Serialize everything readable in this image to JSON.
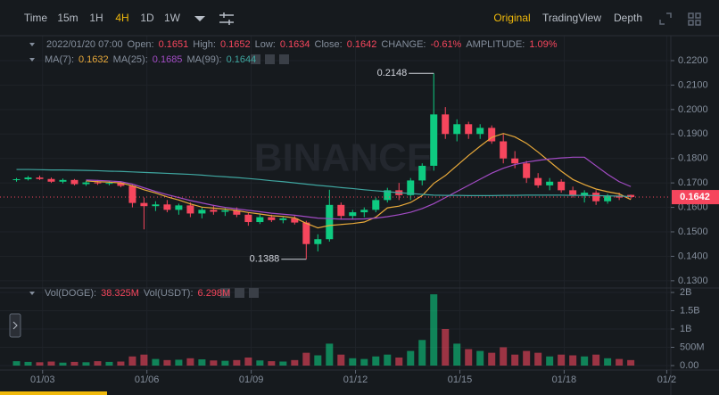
{
  "toolbar": {
    "intervals": [
      "Time",
      "15m",
      "1H",
      "4H",
      "1D",
      "1W"
    ],
    "active_index": 3,
    "views": [
      "Original",
      "TradingView",
      "Depth"
    ],
    "active_view_index": 0
  },
  "info": {
    "date": "2022/01/20 07:00",
    "ohlc_labels": [
      "Open:",
      "High:",
      "Low:",
      "Close:"
    ],
    "change_label": "CHANGE:",
    "change": "-0.61%",
    "amplitude_label": "AMPLITUDE:",
    "amplitude": "1.09%",
    "volume_labels": [
      "Vol(DOGE):",
      "Vol(USDT):"
    ],
    "volume_values": [
      "38.325M",
      "6.298M"
    ]
  },
  "watermark": "BINANCE",
  "chart_data": {
    "type": "candlestick",
    "up_color": "#0ecb81",
    "down_color": "#f6465d",
    "candles": [
      [
        0.1712,
        0.172,
        0.1705,
        0.1715
      ],
      [
        0.1715,
        0.1728,
        0.171,
        0.1722
      ],
      [
        0.1722,
        0.173,
        0.1712,
        0.1716
      ],
      [
        0.1716,
        0.1722,
        0.17,
        0.1705
      ],
      [
        0.1705,
        0.1718,
        0.1698,
        0.1712
      ],
      [
        0.1712,
        0.1716,
        0.169,
        0.1695
      ],
      [
        0.1695,
        0.1708,
        0.1688,
        0.1702
      ],
      [
        0.1702,
        0.1712,
        0.1692,
        0.1698
      ],
      [
        0.1698,
        0.1708,
        0.169,
        0.17
      ],
      [
        0.17,
        0.1705,
        0.1682,
        0.1688
      ],
      [
        0.1688,
        0.1692,
        0.16,
        0.1618
      ],
      [
        0.1618,
        0.164,
        0.151,
        0.1605
      ],
      [
        0.1605,
        0.1625,
        0.1585,
        0.1612
      ],
      [
        0.1612,
        0.163,
        0.158,
        0.159
      ],
      [
        0.159,
        0.1615,
        0.157,
        0.1608
      ],
      [
        0.1608,
        0.162,
        0.156,
        0.1575
      ],
      [
        0.1575,
        0.16,
        0.1555,
        0.159
      ],
      [
        0.159,
        0.161,
        0.157,
        0.1582
      ],
      [
        0.1582,
        0.1598,
        0.1565,
        0.1588
      ],
      [
        0.1588,
        0.16,
        0.156,
        0.157
      ],
      [
        0.157,
        0.158,
        0.1525,
        0.154
      ],
      [
        0.154,
        0.1572,
        0.1532,
        0.156
      ],
      [
        0.156,
        0.157,
        0.154,
        0.1548
      ],
      [
        0.1548,
        0.1562,
        0.1535,
        0.1555
      ],
      [
        0.1555,
        0.1565,
        0.153,
        0.1538
      ],
      [
        0.1538,
        0.1545,
        0.1388,
        0.145
      ],
      [
        0.145,
        0.149,
        0.142,
        0.147
      ],
      [
        0.147,
        0.1672,
        0.146,
        0.161
      ],
      [
        0.161,
        0.162,
        0.155,
        0.1565
      ],
      [
        0.1565,
        0.159,
        0.155,
        0.158
      ],
      [
        0.158,
        0.16,
        0.156,
        0.159
      ],
      [
        0.159,
        0.164,
        0.158,
        0.163
      ],
      [
        0.163,
        0.168,
        0.162,
        0.167
      ],
      [
        0.167,
        0.17,
        0.163,
        0.165
      ],
      [
        0.165,
        0.172,
        0.163,
        0.171
      ],
      [
        0.171,
        0.178,
        0.169,
        0.177
      ],
      [
        0.177,
        0.2148,
        0.175,
        0.198
      ],
      [
        0.198,
        0.201,
        0.188,
        0.19
      ],
      [
        0.19,
        0.196,
        0.187,
        0.194
      ],
      [
        0.194,
        0.195,
        0.188,
        0.19
      ],
      [
        0.19,
        0.194,
        0.188,
        0.1925
      ],
      [
        0.1925,
        0.1935,
        0.186,
        0.187
      ],
      [
        0.187,
        0.19,
        0.178,
        0.18
      ],
      [
        0.18,
        0.183,
        0.176,
        0.178
      ],
      [
        0.178,
        0.179,
        0.17,
        0.172
      ],
      [
        0.172,
        0.174,
        0.168,
        0.169
      ],
      [
        0.169,
        0.172,
        0.167,
        0.1705
      ],
      [
        0.1705,
        0.1715,
        0.166,
        0.167
      ],
      [
        0.167,
        0.1685,
        0.164,
        0.165
      ],
      [
        0.165,
        0.167,
        0.162,
        0.166
      ],
      [
        0.166,
        0.167,
        0.161,
        0.1625
      ],
      [
        0.1625,
        0.1655,
        0.1615,
        0.1648
      ],
      [
        0.1648,
        0.166,
        0.163,
        0.164
      ],
      [
        0.1651,
        0.1652,
        0.1634,
        0.1642
      ]
    ],
    "high_candle": 36,
    "low_candle": 25,
    "series": [
      {
        "name": "MA(7):",
        "color": "#e8a93a",
        "values": [
          null,
          null,
          null,
          null,
          null,
          null,
          0.1708,
          0.1705,
          0.1703,
          0.17,
          0.1688,
          0.1672,
          0.1659,
          0.1643,
          0.163,
          0.1614,
          0.1601,
          0.1597,
          0.1593,
          0.1587,
          0.1579,
          0.1573,
          0.1566,
          0.1563,
          0.1557,
          0.1535,
          0.1516,
          0.1526,
          0.153,
          0.1534,
          0.154,
          0.156,
          0.1598,
          0.1605,
          0.162,
          0.1648,
          0.1698,
          0.173,
          0.1771,
          0.1812,
          0.185,
          0.1886,
          0.1902,
          0.1888,
          0.1862,
          0.1826,
          0.1787,
          0.1748,
          0.1714,
          0.1693,
          0.1675,
          0.1664,
          0.1655,
          0.1632
        ]
      },
      {
        "name": "MA(25):",
        "color": "#a24bc4",
        "values": [
          null,
          null,
          null,
          null,
          null,
          null,
          0.1712,
          0.171,
          0.1708,
          0.1705,
          0.1695,
          0.168,
          0.1665,
          0.1652,
          0.164,
          0.1628,
          0.1618,
          0.1608,
          0.16,
          0.1594,
          0.1588,
          0.1582,
          0.1576,
          0.1572,
          0.1568,
          0.1562,
          0.1556,
          0.1554,
          0.1552,
          0.1552,
          0.1553,
          0.1556,
          0.1562,
          0.157,
          0.158,
          0.1595,
          0.1615,
          0.164,
          0.1665,
          0.169,
          0.1715,
          0.174,
          0.176,
          0.1775,
          0.1785,
          0.1792,
          0.1798,
          0.1802,
          0.1805,
          0.1805,
          0.177,
          0.1735,
          0.1705,
          0.1685
        ]
      },
      {
        "name": "MA(99):",
        "color": "#3fa6a0",
        "values": [
          0.1755,
          0.1755,
          0.1754,
          0.1753,
          0.1753,
          0.1752,
          0.1751,
          0.175,
          0.1748,
          0.1747,
          0.1745,
          0.1743,
          0.1741,
          0.1739,
          0.1737,
          0.1735,
          0.1732,
          0.1728,
          0.1725,
          0.1722,
          0.1718,
          0.1714,
          0.1709,
          0.1705,
          0.17,
          0.1695,
          0.169,
          0.1686,
          0.1681,
          0.1677,
          0.1672,
          0.1668,
          0.1664,
          0.166,
          0.1657,
          0.1653,
          0.165,
          0.1649,
          0.1649,
          0.1648,
          0.1648,
          0.1648,
          0.1649,
          0.1649,
          0.165,
          0.165,
          0.165,
          0.165,
          0.1649,
          0.1649,
          0.1648,
          0.1647,
          0.1646,
          0.1644
        ]
      }
    ],
    "volume": [
      120000000,
      100000000,
      90000000,
      110000000,
      80000000,
      100000000,
      90000000,
      120000000,
      100000000,
      110000000,
      250000000,
      300000000,
      180000000,
      150000000,
      160000000,
      200000000,
      170000000,
      140000000,
      130000000,
      150000000,
      220000000,
      140000000,
      120000000,
      110000000,
      150000000,
      350000000,
      280000000,
      600000000,
      300000000,
      200000000,
      180000000,
      250000000,
      300000000,
      220000000,
      400000000,
      700000000,
      1950000000,
      1000000000,
      600000000,
      450000000,
      400000000,
      350000000,
      500000000,
      300000000,
      400000000,
      350000000,
      250000000,
      300000000,
      280000000,
      250000000,
      300000000,
      200000000,
      180000000,
      150000000
    ],
    "xlim": [
      -0.5,
      56.3
    ],
    "xticks": [
      {
        "value": 2.25,
        "label": "01/03"
      },
      {
        "value": 11.25,
        "label": "01/06"
      },
      {
        "value": 20.25,
        "label": "01/09"
      },
      {
        "value": 29.25,
        "label": "01/12"
      },
      {
        "value": 38.25,
        "label": "01/15"
      },
      {
        "value": 47.25,
        "label": "01/18"
      },
      {
        "value": 56.1,
        "label": "01/2"
      }
    ],
    "ylim": [
      0.1274,
      0.2302
    ],
    "yticks": [
      {
        "value": 0.22,
        "label": "0.2200"
      },
      {
        "value": 0.21,
        "label": "0.2100"
      },
      {
        "value": 0.2,
        "label": "0.2000"
      },
      {
        "value": 0.19,
        "label": "0.1900"
      },
      {
        "value": 0.18,
        "label": "0.1800"
      },
      {
        "value": 0.17,
        "label": "0.1700"
      },
      {
        "value": 0.16,
        "label": "0.1600"
      },
      {
        "value": 0.15,
        "label": "0.1500"
      },
      {
        "value": 0.14,
        "label": "0.1400"
      },
      {
        "value": 0.13,
        "label": "0.1300"
      }
    ],
    "volume_ylim": [
      0,
      2000000000
    ],
    "volume_yticks": [
      {
        "value": 2000000000,
        "label": "2B"
      },
      {
        "value": 1500000000,
        "label": "1.5B"
      },
      {
        "value": 1000000000,
        "label": "1B"
      },
      {
        "value": 500000000,
        "label": "500M"
      },
      {
        "value": 0,
        "label": "0.00"
      }
    ],
    "grid": true
  }
}
